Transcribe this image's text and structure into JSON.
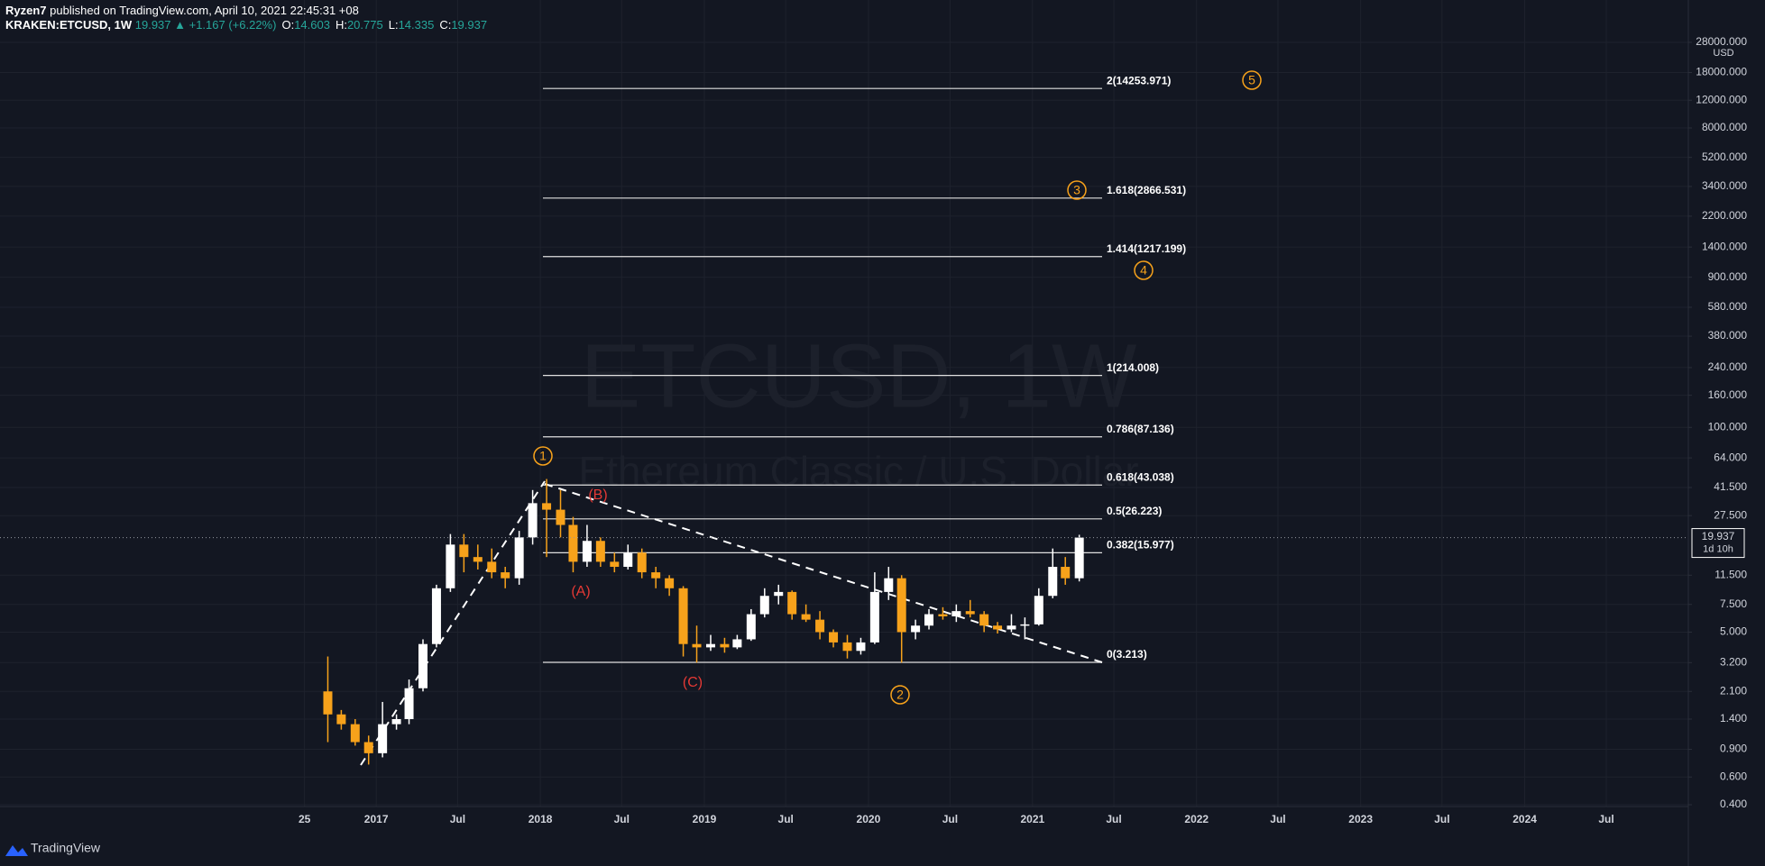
{
  "header": {
    "author": "Ryzen7",
    "published": "published on TradingView.com, April 10, 2021 22:45:31 +08",
    "symbol": "KRAKEN:ETCUSD, 1W",
    "quote": "19.937 ▲ +1.167 (+6.22%)",
    "ohlc": [
      {
        "key": "O:",
        "val": "14.603"
      },
      {
        "key": "H:",
        "val": "20.775"
      },
      {
        "key": "L:",
        "val": "14.335"
      },
      {
        "key": "C:",
        "val": "19.937"
      }
    ]
  },
  "footer": {
    "brand": "TradingView"
  },
  "chart_data": {
    "type": "candlestick",
    "title": "ETCUSD, 1W",
    "subtitle": "Ethereum Classic / U.S. Dollar",
    "x": [
      "2016-09",
      "2016-10",
      "2016-11",
      "2016-12",
      "2017-01",
      "2017-02",
      "2017-03",
      "2017-04",
      "2017-05",
      "2017-06",
      "2017-07",
      "2017-08",
      "2017-09",
      "2017-10",
      "2017-11",
      "2017-12",
      "2018-01",
      "2018-02",
      "2018-03",
      "2018-04",
      "2018-05",
      "2018-06",
      "2018-07",
      "2018-08",
      "2018-09",
      "2018-10",
      "2018-11",
      "2018-12",
      "2019-01",
      "2019-02",
      "2019-03",
      "2019-04",
      "2019-05",
      "2019-06",
      "2019-07",
      "2019-08",
      "2019-09",
      "2019-10",
      "2019-11",
      "2019-12",
      "2020-01",
      "2020-02",
      "2020-03",
      "2020-04",
      "2020-05",
      "2020-06",
      "2020-07",
      "2020-08",
      "2020-09",
      "2020-10",
      "2020-11",
      "2020-12",
      "2021-01",
      "2021-02",
      "2021-03",
      "2021-04"
    ],
    "open": [
      2.1,
      1.5,
      1.3,
      1.0,
      0.85,
      1.3,
      1.4,
      2.2,
      4.2,
      9.5,
      18,
      15,
      14,
      12,
      11,
      20,
      33,
      30,
      24,
      14,
      19,
      14,
      13,
      16,
      12,
      11,
      9.5,
      4.2,
      4.0,
      4.2,
      4.0,
      4.5,
      6.5,
      8.5,
      9,
      6.5,
      6,
      5,
      4.3,
      3.8,
      4.3,
      9,
      11,
      5,
      5.5,
      6.5,
      6.3,
      6.8,
      6.5,
      5.5,
      5.2,
      5.5,
      5.6,
      8.5,
      13,
      11
    ],
    "high": [
      3.5,
      1.6,
      1.4,
      1.1,
      1.8,
      1.5,
      2.5,
      4.5,
      10,
      21,
      21,
      18,
      17,
      13,
      22,
      40,
      47,
      40,
      27,
      24,
      20,
      16,
      18,
      17,
      13,
      11.5,
      9.8,
      5.5,
      4.8,
      4.6,
      4.8,
      7,
      9.5,
      10,
      9.2,
      7.5,
      6.8,
      5.2,
      4.8,
      4.6,
      12,
      13,
      11.5,
      6,
      7,
      7.2,
      7.5,
      8,
      6.8,
      5.8,
      6.5,
      6.2,
      9.5,
      17,
      15,
      20.775
    ],
    "low": [
      1.0,
      1.2,
      0.95,
      0.72,
      0.8,
      1.2,
      1.3,
      2.1,
      4.0,
      9,
      12,
      12.5,
      11,
      9.5,
      10,
      18,
      15,
      20,
      12,
      13,
      13,
      12,
      12.5,
      11,
      9.5,
      8.5,
      3.5,
      3.2,
      3.8,
      3.7,
      3.9,
      4.4,
      6.2,
      7.5,
      6,
      5.8,
      4.5,
      4,
      3.4,
      3.6,
      4.2,
      8,
      3.2,
      4.5,
      5.2,
      6,
      5.8,
      6.2,
      5,
      4.9,
      5,
      4.5,
      5.5,
      8.2,
      10,
      10.5
    ],
    "close": [
      1.5,
      1.3,
      1.0,
      0.85,
      1.3,
      1.4,
      2.2,
      4.2,
      9.5,
      18,
      15,
      14,
      12,
      11,
      20,
      33,
      30,
      24,
      14,
      19,
      14,
      13,
      16,
      12,
      11,
      9.5,
      4.2,
      4.0,
      4.2,
      4.0,
      4.5,
      6.5,
      8.5,
      9,
      6.5,
      6,
      5,
      4.3,
      3.8,
      4.3,
      9,
      11,
      5,
      5.5,
      6.5,
      6.3,
      6.8,
      6.5,
      5.5,
      5.2,
      5.5,
      5.6,
      8.5,
      13,
      11,
      19.937
    ],
    "up_color": "#ffffff",
    "down_color": "#f7a21b",
    "log_scale": true,
    "grid": true,
    "y_unit": "USD",
    "ylim": [
      0.4,
      28000
    ],
    "yticks": [
      {
        "value": 28000,
        "label": "28000.000"
      },
      {
        "value": 18000,
        "label": "18000.000"
      },
      {
        "value": 12000,
        "label": "12000.000"
      },
      {
        "value": 8000,
        "label": "8000.000"
      },
      {
        "value": 5200,
        "label": "5200.000"
      },
      {
        "value": 3400,
        "label": "3400.000"
      },
      {
        "value": 2200,
        "label": "2200.000"
      },
      {
        "value": 1400,
        "label": "1400.000"
      },
      {
        "value": 900,
        "label": "900.000"
      },
      {
        "value": 580,
        "label": "580.000"
      },
      {
        "value": 380,
        "label": "380.000"
      },
      {
        "value": 240,
        "label": "240.000"
      },
      {
        "value": 160,
        "label": "160.000"
      },
      {
        "value": 100,
        "label": "100.000"
      },
      {
        "value": 64,
        "label": "64.000"
      },
      {
        "value": 41.5,
        "label": "41.500"
      },
      {
        "value": 27.5,
        "label": "27.500"
      },
      {
        "value": 11.5,
        "label": "11.500"
      },
      {
        "value": 7.5,
        "label": "7.500"
      },
      {
        "value": 5,
        "label": "5.000"
      },
      {
        "value": 3.2,
        "label": "3.200"
      },
      {
        "value": 2.1,
        "label": "2.100"
      },
      {
        "value": 1.4,
        "label": "1.400"
      },
      {
        "value": 0.9,
        "label": "0.900"
      },
      {
        "value": 0.6,
        "label": "0.600"
      },
      {
        "value": 0.4,
        "label": "0.400"
      }
    ],
    "xlim": [
      "2014-09-16",
      "2024-12-31"
    ],
    "xticks": [
      {
        "value": "2016-07-25",
        "label": "25"
      },
      {
        "value": "2017-01-01",
        "label": "2017"
      },
      {
        "value": "2017-07-01",
        "label": "Jul"
      },
      {
        "value": "2018-01-01",
        "label": "2018"
      },
      {
        "value": "2018-07-01",
        "label": "Jul"
      },
      {
        "value": "2019-01-01",
        "label": "2019"
      },
      {
        "value": "2019-07-01",
        "label": "Jul"
      },
      {
        "value": "2020-01-01",
        "label": "2020"
      },
      {
        "value": "2020-07-01",
        "label": "Jul"
      },
      {
        "value": "2021-01-01",
        "label": "2021"
      },
      {
        "value": "2021-07-01",
        "label": "Jul"
      },
      {
        "value": "2022-01-01",
        "label": "2022"
      },
      {
        "value": "2022-07-01",
        "label": "Jul"
      },
      {
        "value": "2023-01-01",
        "label": "2023"
      },
      {
        "value": "2023-07-01",
        "label": "Jul"
      },
      {
        "value": "2024-01-01",
        "label": "2024"
      },
      {
        "value": "2024-07-01",
        "label": "Jul"
      }
    ],
    "last_price": 19.937,
    "countdown": "1d 10h",
    "fib_levels": [
      {
        "label": "2(14253.971)",
        "value": 14253.971
      },
      {
        "label": "1.618(2866.531)",
        "value": 2866.531
      },
      {
        "label": "1.414(1217.199)",
        "value": 1217.199
      },
      {
        "label": "1(214.008)",
        "value": 214.008
      },
      {
        "label": "0.786(87.136)",
        "value": 87.136
      },
      {
        "label": "0.618(43.038)",
        "value": 43.038
      },
      {
        "label": "0.5(26.223)",
        "value": 26.223
      },
      {
        "label": "0.382(15.977)",
        "value": 15.977
      },
      {
        "label": "0(3.213)",
        "value": 3.213
      }
    ],
    "waves": [
      {
        "label": "1",
        "style": "circle"
      },
      {
        "label": "2",
        "style": "circle"
      },
      {
        "label": "3",
        "style": "circle"
      },
      {
        "label": "4",
        "style": "circle"
      },
      {
        "label": "5",
        "style": "circle"
      },
      {
        "label": "(A)",
        "style": "text"
      },
      {
        "label": "(B)",
        "style": "text"
      },
      {
        "label": "(C)",
        "style": "text"
      }
    ]
  }
}
